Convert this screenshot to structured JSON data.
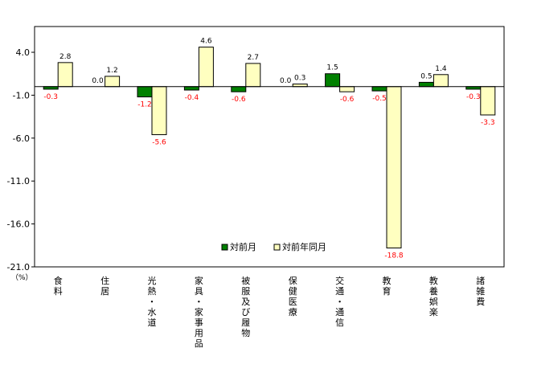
{
  "chart_data": {
    "type": "bar",
    "categories": [
      "食料",
      "住居",
      "光熱・水道",
      "家具・家事用品",
      "被服及び履物",
      "保健医療",
      "交通・通信",
      "教育",
      "教養娯楽",
      "諸雑費"
    ],
    "series": [
      {
        "name": "対前月",
        "color": "#008000",
        "values": [
          -0.3,
          0.0,
          -1.2,
          -0.4,
          -0.6,
          0.0,
          1.5,
          -0.5,
          0.5,
          -0.3
        ]
      },
      {
        "name": "対前年同月",
        "color": "#ffffc0",
        "values": [
          2.8,
          1.2,
          -5.6,
          4.6,
          2.7,
          0.3,
          -0.6,
          -18.8,
          1.4,
          -3.3
        ]
      }
    ],
    "value_labels": [
      [
        "-0.3",
        "0.0",
        "-1.2",
        "-0.4",
        "-0.6",
        "0.0",
        "1.5",
        "-0.5",
        "0.5",
        "-0.3"
      ],
      [
        "2.8",
        "1.2",
        "-5.6",
        "4.6",
        "2.7",
        "0.3",
        "-0.6",
        "-18.8",
        "1.4",
        "-3.3"
      ]
    ],
    "y_ticks": [
      4.0,
      -1.0,
      -6.0,
      -11.0,
      -16.0,
      -21.0
    ],
    "y_tick_labels": [
      "4.0",
      "-1.0",
      "-6.0",
      "-11.0",
      "-16.0",
      "-21.0"
    ],
    "ylim": [
      -21.0,
      7.0
    ],
    "y_unit": "（%）",
    "negative_label_color": "#ff0000",
    "positive_label_color": "#000000",
    "grid": false,
    "legend_position": "bottom-center"
  }
}
